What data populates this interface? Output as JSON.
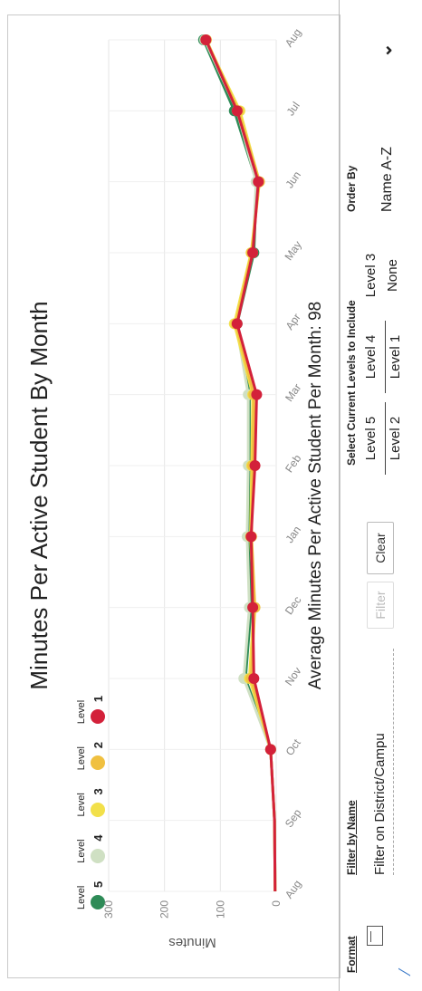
{
  "chart_data": {
    "type": "line",
    "title": "Minutes Per Active Student By Month",
    "ylabel": "Minutes",
    "xlabel": "",
    "ylim": [
      0,
      300
    ],
    "yticks": [
      0,
      100,
      200,
      300
    ],
    "categories": [
      "Aug",
      "Sep",
      "Oct",
      "Nov",
      "Dec",
      "Jan",
      "Feb",
      "Mar",
      "Apr",
      "May",
      "Jun",
      "Jul",
      "Aug"
    ],
    "series": [
      {
        "name": "5",
        "color": "#2e8b57",
        "values": [
          2,
          3,
          10,
          55,
          45,
          50,
          48,
          48,
          70,
          40,
          35,
          75,
          130
        ]
      },
      {
        "name": "4",
        "color": "#cfe0c3",
        "values": [
          2,
          3,
          10,
          58,
          48,
          52,
          50,
          50,
          72,
          42,
          36,
          70,
          128
        ]
      },
      {
        "name": "3",
        "color": "#f2e04a",
        "values": [
          2,
          3,
          10,
          48,
          40,
          46,
          44,
          42,
          75,
          45,
          30,
          65,
          126
        ]
      },
      {
        "name": "2",
        "color": "#f0c040",
        "values": [
          2,
          3,
          10,
          45,
          38,
          44,
          42,
          40,
          72,
          44,
          30,
          68,
          125
        ]
      },
      {
        "name": "1",
        "color": "#d3213a",
        "values": [
          2,
          3,
          10,
          40,
          42,
          45,
          38,
          35,
          70,
          42,
          32,
          70,
          126
        ]
      }
    ]
  },
  "legend": [
    {
      "head": "Level",
      "label": "5",
      "color": "#2e8b57"
    },
    {
      "head": "Level",
      "label": "4",
      "color": "#cfe0c3"
    },
    {
      "head": "Level",
      "label": "3",
      "color": "#f2e04a"
    },
    {
      "head": "Level",
      "label": "2",
      "color": "#f0c040"
    },
    {
      "head": "Level",
      "label": "1",
      "color": "#d3213a"
    }
  ],
  "average_text": "Average Minutes Per Active Student Per Month: 98",
  "controls": {
    "format_label": "Format",
    "filter_label": "Filter by Name",
    "filter_value": "Filter on District/Campu",
    "filter_button": "Filter",
    "clear_button": "Clear",
    "levels_label": "Select Current Levels to Include",
    "levels_top": [
      "Level 5",
      "Level 4",
      "Level 3"
    ],
    "levels_bottom": [
      "Level 2",
      "Level 1",
      "None"
    ],
    "order_label": "Order By",
    "order_value": "Name A-Z"
  }
}
